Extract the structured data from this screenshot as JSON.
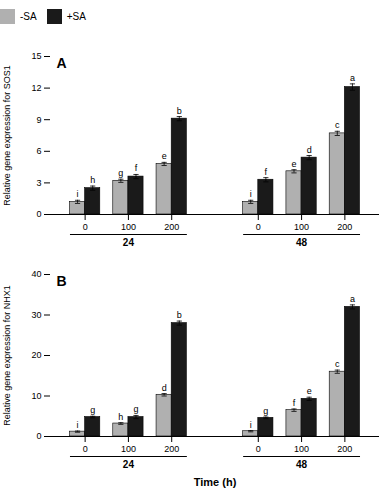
{
  "chart_data": [
    {
      "type": "bar",
      "title": "A",
      "ylabel": "Relative gene expression for SOS1",
      "categories": [
        "0",
        "100",
        "200",
        "0",
        "100",
        "200"
      ],
      "groups": [
        "24",
        "48"
      ],
      "ylim": [
        0,
        15
      ],
      "yticks": [
        0,
        3,
        6,
        9,
        12,
        15
      ],
      "legend": "top",
      "series": [
        {
          "name": "-SA",
          "color": "#b0b0b0",
          "values": [
            1.2,
            3.2,
            4.8,
            1.2,
            4.1,
            7.7
          ],
          "errors": [
            0.15,
            0.15,
            0.15,
            0.15,
            0.15,
            0.2
          ],
          "letters": [
            "i",
            "g",
            "e",
            "i",
            "e",
            "c"
          ]
        },
        {
          "name": "+SA",
          "color": "#1a1a1a",
          "values": [
            2.5,
            3.6,
            9.1,
            3.3,
            5.4,
            12.1
          ],
          "errors": [
            0.2,
            0.2,
            0.2,
            0.2,
            0.2,
            0.3
          ],
          "letters": [
            "h",
            "f",
            "b",
            "f",
            "d",
            "a"
          ]
        }
      ]
    },
    {
      "type": "bar",
      "title": "B",
      "ylabel": "Relative gene expression for NHX1",
      "xlabel": "Time (h)",
      "categories": [
        "0",
        "100",
        "200",
        "0",
        "100",
        "200"
      ],
      "groups": [
        "24",
        "48"
      ],
      "ylim": [
        0,
        40
      ],
      "yticks": [
        0,
        10,
        20,
        30,
        40
      ],
      "series": [
        {
          "name": "-SA",
          "color": "#b0b0b0",
          "values": [
            1.2,
            3.2,
            10.3,
            1.3,
            6.5,
            16.0
          ],
          "errors": [
            0.15,
            0.2,
            0.3,
            0.15,
            0.3,
            0.4
          ],
          "letters": [
            "i",
            "h",
            "d",
            "i",
            "f",
            "c"
          ]
        },
        {
          "name": "+SA",
          "color": "#1a1a1a",
          "values": [
            4.8,
            4.8,
            28.0,
            4.6,
            9.3,
            32.0
          ],
          "errors": [
            0.2,
            0.4,
            0.5,
            0.2,
            0.4,
            0.5
          ],
          "letters": [
            "g",
            "g",
            "b",
            "g",
            "e",
            "a"
          ]
        }
      ]
    }
  ]
}
